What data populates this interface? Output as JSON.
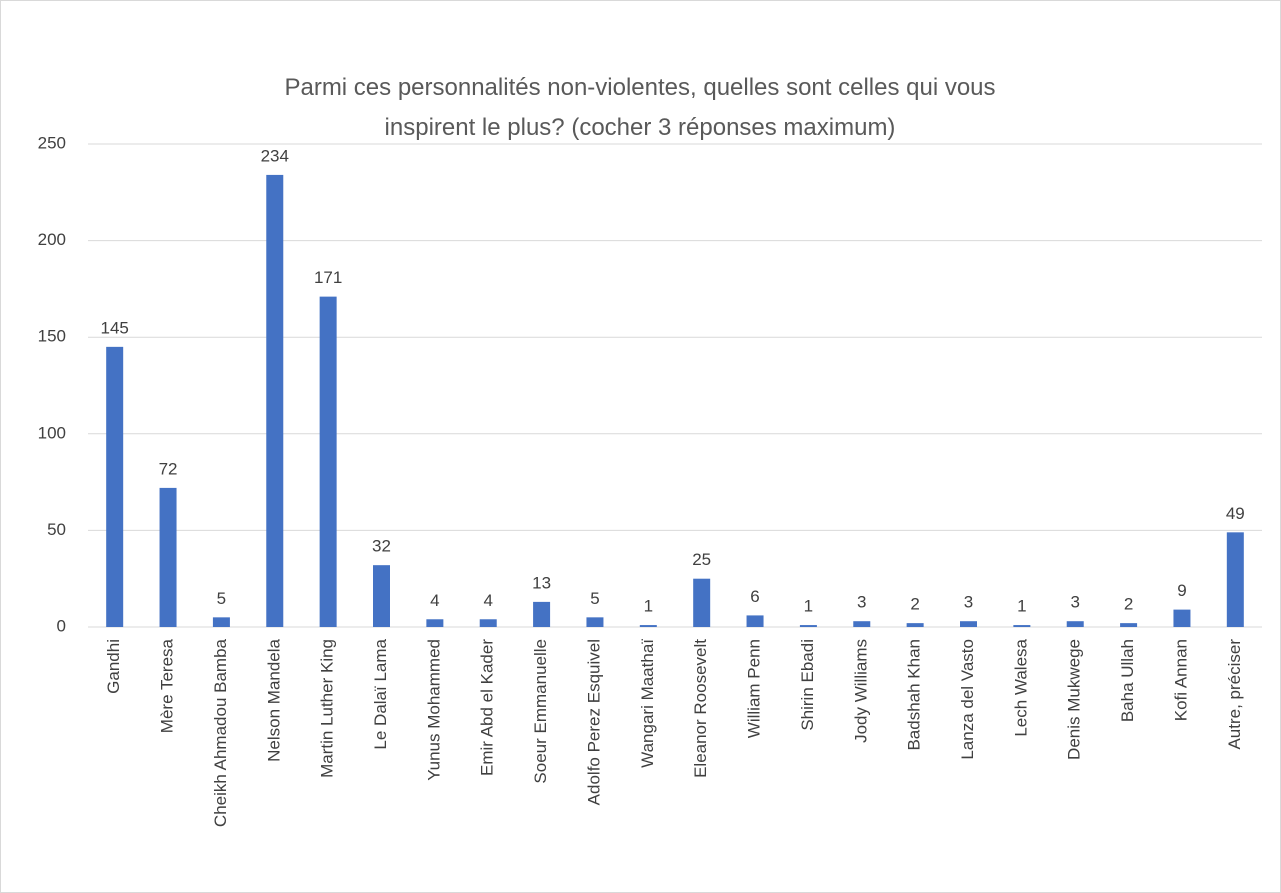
{
  "chart_data": {
    "type": "bar",
    "title": "Parmi ces personnalités non-violentes, quelles sont celles qui vous inspirent le plus? (cocher 3 réponses maximum)",
    "categories": [
      "Gandhi",
      "Mère Teresa",
      "Cheikh Ahmadou Bamba",
      "Nelson Mandela",
      "Martin Luther King",
      "Le Dalaï Lama",
      "Yunus Mohammed",
      "Emir Abd el Kader",
      "Soeur Emmanuelle",
      "Adolfo Perez Esquivel",
      "Wangari Maathaï",
      "Eleanor Roosevelt",
      "William Penn",
      "Shirin Ebadi",
      "Jody Williams",
      "Badshah Khan",
      "Lanza del Vasto",
      "Lech Walesa",
      "Denis Mukwege",
      "Baha Ullah",
      "Kofi Annan",
      "Autre, préciser"
    ],
    "values": [
      145,
      72,
      5,
      234,
      171,
      32,
      4,
      4,
      13,
      5,
      1,
      25,
      6,
      1,
      3,
      2,
      3,
      1,
      3,
      2,
      9,
      49
    ],
    "color": "#4472c4",
    "ylim": [
      0,
      250
    ],
    "yticks": [
      0,
      50,
      100,
      150,
      200,
      250
    ],
    "grid": true
  }
}
